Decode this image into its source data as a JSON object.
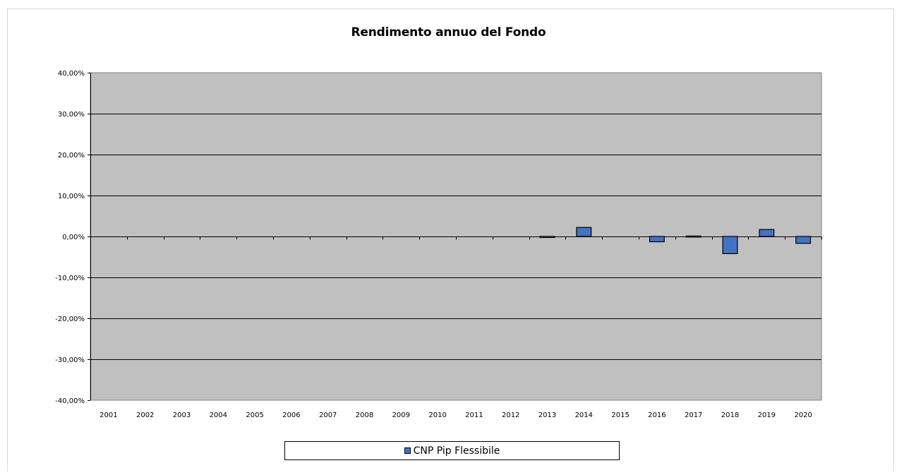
{
  "chart_data": {
    "type": "bar",
    "title": "Rendimento annuo del Fondo",
    "categories": [
      "2001",
      "2002",
      "2003",
      "2004",
      "2005",
      "2006",
      "2007",
      "2008",
      "2009",
      "2010",
      "2011",
      "2012",
      "2013",
      "2014",
      "2015",
      "2016",
      "2017",
      "2018",
      "2019",
      "2020"
    ],
    "series": [
      {
        "name": "CNP Pip Flessibile",
        "values": [
          null,
          null,
          null,
          null,
          null,
          null,
          null,
          null,
          null,
          null,
          null,
          null,
          -0.2,
          2.2,
          null,
          -1.3,
          0.1,
          -4.2,
          1.7,
          -1.7
        ],
        "color": "#4472c4"
      }
    ],
    "yticks": [
      "40,00%",
      "30,00%",
      "20,00%",
      "10,00%",
      "0,00%",
      "-10,00%",
      "-20,00%",
      "-30,00%",
      "-40,00%"
    ],
    "ylim": [
      -40,
      40
    ],
    "plot_background": "#c0c0c0",
    "grid": true,
    "legend_position": "bottom"
  }
}
